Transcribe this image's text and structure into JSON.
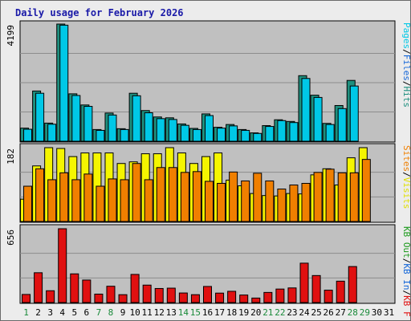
{
  "chart_data": {
    "title": "Daily usage for February 2026",
    "type": "bar",
    "days": [
      "1",
      "2",
      "3",
      "4",
      "5",
      "6",
      "7",
      "8",
      "9",
      "10",
      "11",
      "12",
      "13",
      "14",
      "15",
      "16",
      "17",
      "18",
      "19",
      "20",
      "21",
      "22",
      "23",
      "24",
      "25",
      "26",
      "27",
      "28",
      "29",
      "30",
      "31"
    ],
    "weekend_days": [
      "1",
      "7",
      "8",
      "14",
      "15",
      "21",
      "22",
      "28",
      "29"
    ],
    "panels": [
      {
        "name": "pages-files-hits",
        "ymax_label": "4199",
        "ymax": 4199,
        "legend": [
          "Hits",
          "/",
          "Files",
          "/",
          "Pages"
        ],
        "series": [
          {
            "name": "Hits",
            "color": "#1e8f7e",
            "values": [
              470,
              1800,
              650,
              4199,
              1700,
              1300,
              420,
              1010,
              450,
              1720,
              1100,
              870,
              840,
              620,
              460,
              980,
              500,
              600,
              420,
              300,
              560,
              770,
              710,
              2350,
              1650,
              640,
              1280,
              2180,
              0,
              0,
              0
            ]
          },
          {
            "name": "Files",
            "color": "#00c8e6",
            "values": [
              430,
              1720,
              610,
              4160,
              1640,
              1250,
              390,
              940,
              420,
              1630,
              1020,
              810,
              780,
              570,
              420,
              920,
              470,
              550,
              390,
              280,
              530,
              740,
              670,
              2250,
              1570,
              600,
              1170,
              1980,
              0,
              0,
              0
            ]
          }
        ]
      },
      {
        "name": "visits-sites",
        "ymax_label": "182",
        "ymax": 182,
        "legend": [
          "Visits",
          "/",
          "Sites"
        ],
        "series": [
          {
            "name": "Visits",
            "color": "#f5f500",
            "values": [
              55,
              137,
              182,
              180,
              160,
              169,
              169,
              169,
              143,
              147,
              167,
              167,
              182,
              169,
              143,
              160,
              169,
              102,
              88,
              69,
              64,
              63,
              69,
              68,
              115,
              130,
              90,
              157,
              182,
              0,
              0
            ]
          },
          {
            "name": "Sites",
            "color": "#f07f00",
            "values": [
              87,
              130,
              103,
              120,
              103,
              117,
              87,
              105,
              103,
              143,
              103,
              133,
              133,
              121,
              123,
              99,
              94,
              122,
              100,
              119,
              100,
              80,
              90,
              94,
              121,
              129,
              120,
              120,
              153,
              0,
              0
            ]
          }
        ]
      },
      {
        "name": "kbf-kbin-kbout",
        "ymax_label": "656",
        "ymax": 656,
        "legend": [
          "KB F",
          "/",
          "KB In",
          "/",
          "KB Out"
        ],
        "series": [
          {
            "name": "KB F",
            "color": "#e01010",
            "values": [
              72,
              265,
              105,
              656,
              255,
              200,
              75,
              145,
              70,
              250,
              155,
              125,
              128,
              85,
              70,
              143,
              84,
              100,
              67,
              40,
              90,
              120,
              130,
              350,
              240,
              110,
              190,
              320,
              0,
              0,
              0
            ]
          }
        ]
      }
    ]
  }
}
